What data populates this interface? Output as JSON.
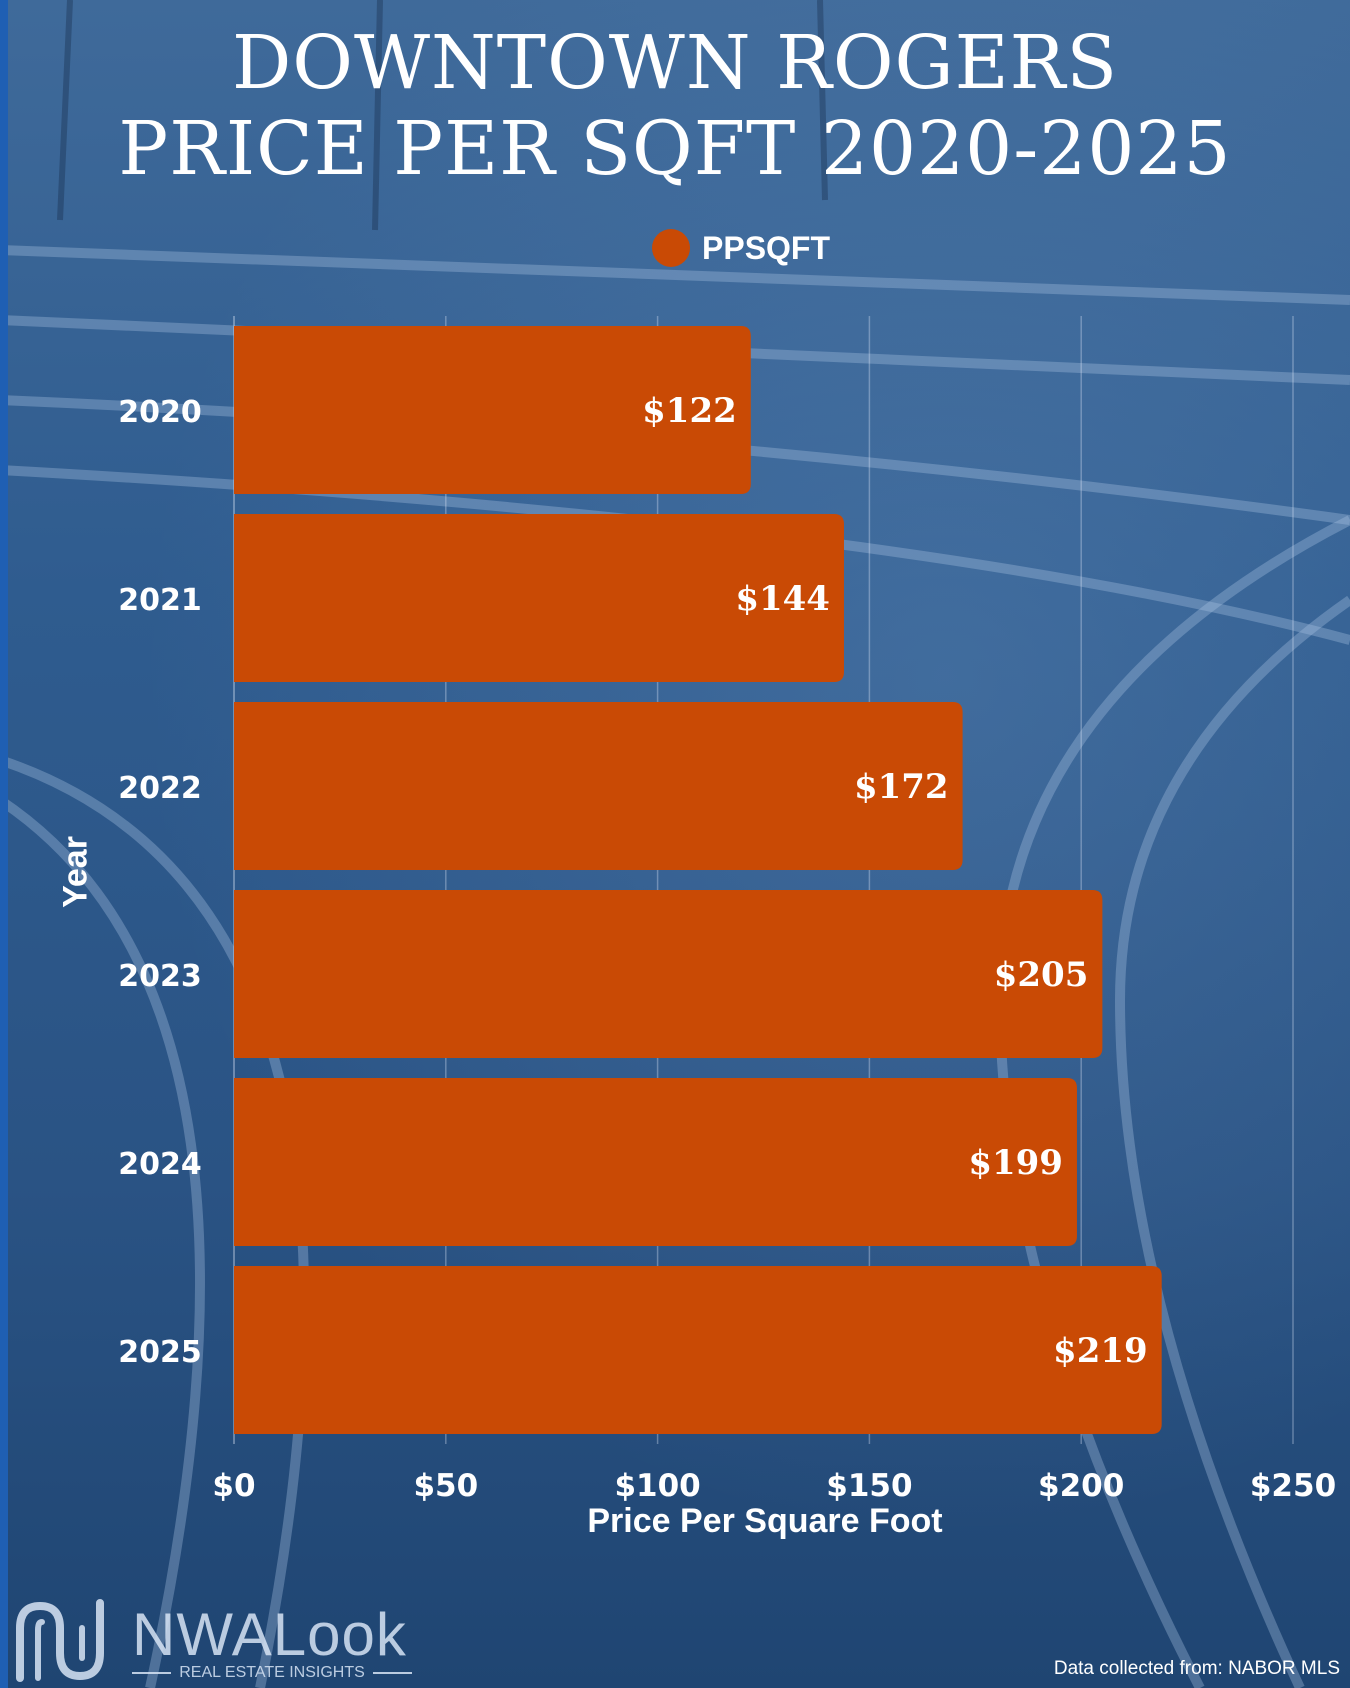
{
  "header": {
    "title_line1": "DOWNTOWN ROGERS",
    "title_line2": "PRICE PER SQFT 2020-2025"
  },
  "legend": {
    "label": "PPSQFT",
    "color": "#c94a05"
  },
  "chart_data": {
    "type": "bar",
    "orientation": "horizontal",
    "title": "DOWNTOWN ROGERS PRICE PER SQFT 2020-2025",
    "categories": [
      "2020",
      "2021",
      "2022",
      "2023",
      "2024",
      "2025"
    ],
    "series": [
      {
        "name": "PPSQFT",
        "values": [
          122,
          144,
          172,
          205,
          199,
          219
        ]
      }
    ],
    "data_labels": [
      "$122",
      "$144",
      "$172",
      "$205",
      "$199",
      "$219"
    ],
    "xlabel": "Price Per Square Foot",
    "ylabel": "Year",
    "xlim": [
      0,
      250
    ],
    "xticks": [
      0,
      50,
      100,
      150,
      200,
      250
    ],
    "xtick_labels": [
      "$0",
      "$50",
      "$100",
      "$150",
      "$200",
      "$250"
    ],
    "grid": "vertical",
    "legend_position": "top-center",
    "bar_color": "#c94a05"
  },
  "branding": {
    "logo_name": "NWALook",
    "logo_tagline": "REAL ESTATE INSIGHTS",
    "logo_icon": "nwalook-logo-icon"
  },
  "footer": {
    "source": "Data collected from: NABOR MLS"
  }
}
